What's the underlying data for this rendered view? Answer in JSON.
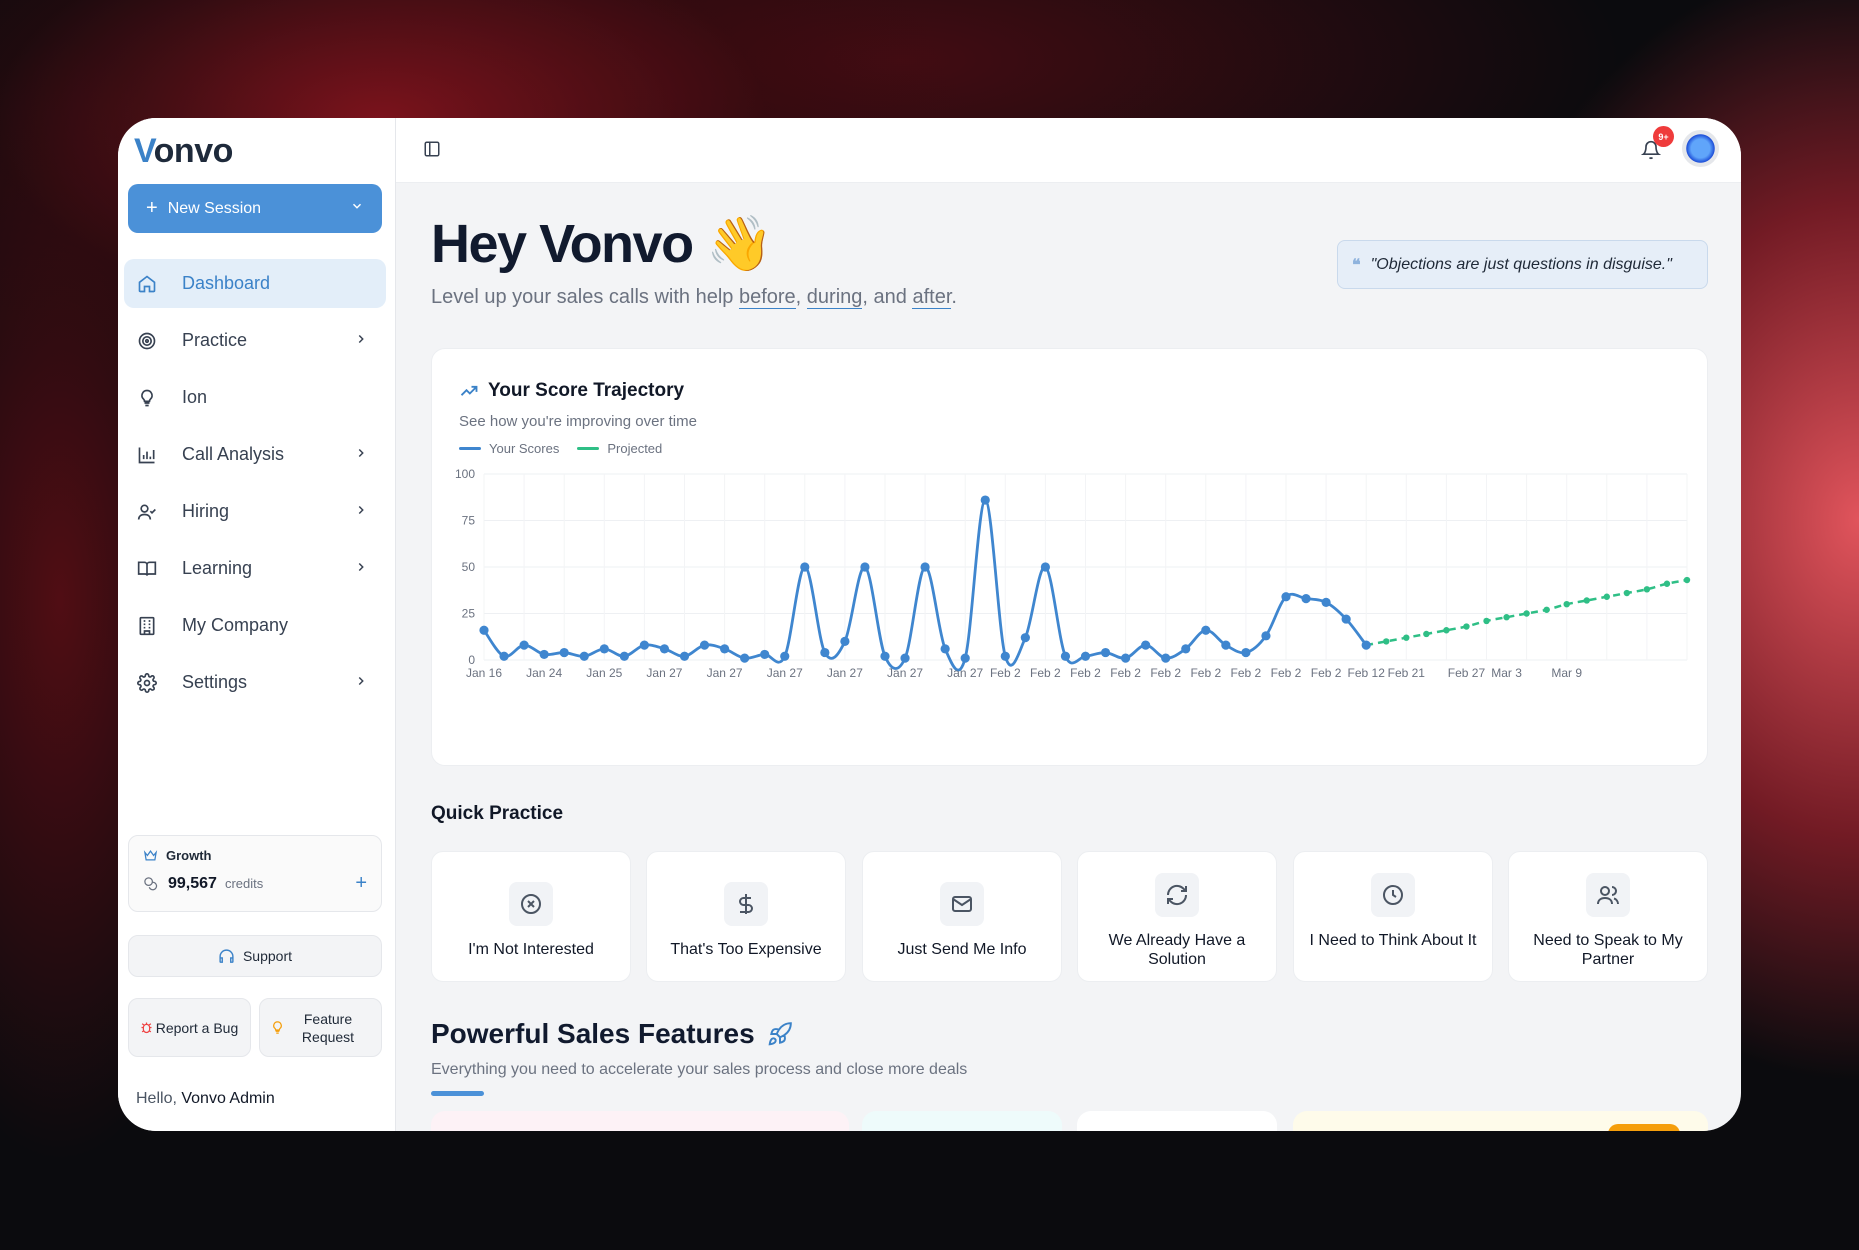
{
  "app": {
    "logo_v": "V",
    "logo_rest": "onvo"
  },
  "sidebar": {
    "new_session": "New Session",
    "items": [
      {
        "label": "Dashboard",
        "icon": "home-icon",
        "active": true,
        "has_submenu": false
      },
      {
        "label": "Practice",
        "icon": "target-icon",
        "has_submenu": true
      },
      {
        "label": "Ion",
        "icon": "lightbulb-icon",
        "has_submenu": false
      },
      {
        "label": "Call Analysis",
        "icon": "bar-chart-icon",
        "has_submenu": true
      },
      {
        "label": "Hiring",
        "icon": "user-check-icon",
        "has_submenu": true
      },
      {
        "label": "Learning",
        "icon": "book-icon",
        "has_submenu": true
      },
      {
        "label": "My Company",
        "icon": "building-icon",
        "has_submenu": false
      },
      {
        "label": "Settings",
        "icon": "gear-icon",
        "has_submenu": true
      }
    ],
    "plan": {
      "tier": "Growth",
      "credits": "99,567",
      "credits_label": "credits"
    },
    "support": "Support",
    "report_bug": "Report a Bug",
    "feature_request": "Feature Request",
    "hello_prefix": "Hello,",
    "user_name": "Vonvo Admin"
  },
  "topbar": {
    "notifications_badge": "9+"
  },
  "header": {
    "greeting": "Hey Vonvo",
    "greeting_emoji": "👋",
    "sub_prefix": "Level up your sales calls with help",
    "sub_before": "before",
    "sub_comma": ",",
    "sub_during": "during",
    "sub_and": ", and",
    "sub_after": "after",
    "sub_end": ".",
    "quote": "\"Objections are just questions in disguise.\""
  },
  "score_card": {
    "title": "Your Score Trajectory",
    "subtitle": "See how you're improving over time"
  },
  "chart_data": {
    "type": "line",
    "title": "Your Score Trajectory",
    "ylim": [
      0,
      100
    ],
    "yticks": [
      0,
      25,
      50,
      75,
      100
    ],
    "grid": true,
    "legend_position": "top-left",
    "x_tick_labels": [
      "Jan 16",
      "Jan 24",
      "Jan 25",
      "Jan 27",
      "Jan 27",
      "Jan 27",
      "Jan 27",
      "Jan 27",
      "Jan 27",
      "Feb 2",
      "Feb 2",
      "Feb 2",
      "Feb 2",
      "Feb 2",
      "Feb 2",
      "Feb 2",
      "Feb 2",
      "Feb 2",
      "Feb 12",
      "Feb 21",
      "Feb 27",
      "Mar 3",
      "Mar 9"
    ],
    "series": [
      {
        "name": "Your Scores",
        "color": "#3f86cf",
        "style": "solid",
        "values": [
          16,
          2,
          8,
          3,
          4,
          2,
          6,
          2,
          8,
          6,
          2,
          8,
          6,
          1,
          3,
          2,
          50,
          4,
          10,
          50,
          2,
          1,
          50,
          6,
          1,
          86,
          2,
          12,
          50,
          2,
          2,
          4,
          1,
          8,
          1,
          6,
          16,
          8,
          4,
          13,
          34,
          33,
          31,
          22,
          8
        ]
      },
      {
        "name": "Projected",
        "color": "#2fbf86",
        "style": "dashed",
        "values": [
          8,
          10,
          12,
          14,
          16,
          18,
          21,
          23,
          25,
          27,
          30,
          32,
          34,
          36,
          38,
          41,
          43
        ]
      }
    ]
  },
  "quick_practice": {
    "title": "Quick Practice",
    "items": [
      {
        "label": "I'm Not Interested",
        "icon": "x-circle-icon"
      },
      {
        "label": "That's Too Expensive",
        "icon": "dollar-icon"
      },
      {
        "label": "Just Send Me Info",
        "icon": "mail-icon"
      },
      {
        "label": "We Already Have a Solution",
        "icon": "refresh-icon"
      },
      {
        "label": "I Need to Think About It",
        "icon": "clock-icon"
      },
      {
        "label": "Need to Speak to My Partner",
        "icon": "users-icon"
      }
    ]
  },
  "features": {
    "title": "Powerful Sales Features",
    "subtitle": "Everything you need to accelerate your sales process and close more deals"
  }
}
